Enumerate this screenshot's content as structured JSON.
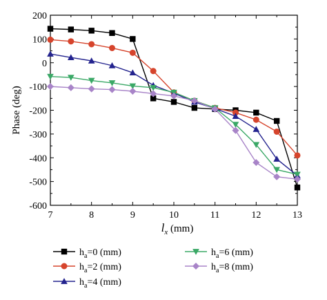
{
  "chart_data": {
    "type": "line",
    "xlabel_main": "l",
    "xlabel_sub": "x",
    "xlabel_unit": " (mm)",
    "ylabel": "Phase (deg)",
    "xlim": [
      7,
      13
    ],
    "ylim": [
      -600,
      200
    ],
    "xticks": [
      7,
      8,
      9,
      10,
      11,
      12,
      13
    ],
    "yticks": [
      200,
      100,
      0,
      -100,
      -200,
      -300,
      -400,
      -500,
      -600
    ],
    "grid": false,
    "legend_position": "bottom",
    "x": [
      7,
      7.5,
      8,
      8.5,
      9,
      9.5,
      10,
      10.5,
      11,
      11.5,
      12,
      12.5,
      13
    ],
    "series": [
      {
        "label_main": "h",
        "label_sub": "a",
        "label_rest": "=0 (mm)",
        "color": "#000000",
        "marker": "square",
        "values": [
          143,
          140,
          135,
          125,
          100,
          -150,
          -165,
          -190,
          -195,
          -200,
          -210,
          -245,
          -525
        ]
      },
      {
        "label_main": "h",
        "label_sub": "a",
        "label_rest": "=2 (mm)",
        "color": "#d6442c",
        "marker": "circle",
        "values": [
          97,
          90,
          78,
          62,
          42,
          -35,
          -125,
          -160,
          -190,
          -210,
          -240,
          -290,
          -390
        ]
      },
      {
        "label_main": "h",
        "label_sub": "a",
        "label_rest": "=4 (mm)",
        "color": "#23238e",
        "marker": "triangle-up",
        "values": [
          37,
          22,
          8,
          -12,
          -42,
          -95,
          -128,
          -165,
          -193,
          -225,
          -280,
          -405,
          -475
        ]
      },
      {
        "label_main": "h",
        "label_sub": "a",
        "label_rest": "=6 (mm)",
        "color": "#3aa866",
        "marker": "triangle-down",
        "values": [
          -58,
          -62,
          -75,
          -85,
          -98,
          -105,
          -125,
          -160,
          -190,
          -260,
          -345,
          -450,
          -470
        ]
      },
      {
        "label_main": "h",
        "label_sub": "a",
        "label_rest": "=8 (mm)",
        "color": "#a884c8",
        "marker": "diamond",
        "values": [
          -100,
          -105,
          -110,
          -113,
          -120,
          -130,
          -140,
          -160,
          -195,
          -285,
          -420,
          -480,
          -490
        ]
      }
    ]
  }
}
